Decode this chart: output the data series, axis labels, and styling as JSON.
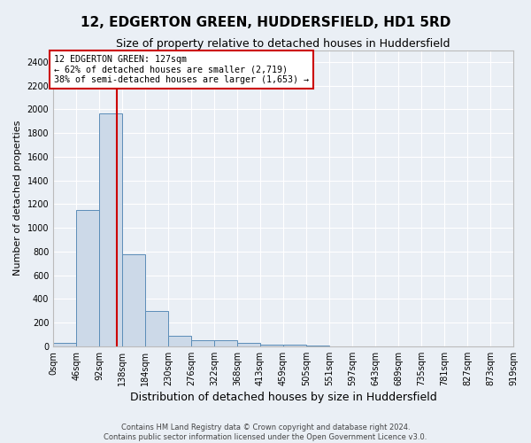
{
  "title": "12, EDGERTON GREEN, HUDDERSFIELD, HD1 5RD",
  "subtitle": "Size of property relative to detached houses in Huddersfield",
  "xlabel": "Distribution of detached houses by size in Huddersfield",
  "ylabel": "Number of detached properties",
  "footer_line1": "Contains HM Land Registry data © Crown copyright and database right 2024.",
  "footer_line2": "Contains public sector information licensed under the Open Government Licence v3.0.",
  "bin_edges": [
    0,
    46,
    92,
    138,
    184,
    230,
    276,
    322,
    368,
    413,
    459,
    505,
    551,
    597,
    643,
    689,
    735,
    781,
    827,
    873,
    919
  ],
  "bar_heights": [
    30,
    1150,
    1970,
    780,
    300,
    90,
    50,
    50,
    25,
    15,
    15,
    5,
    0,
    0,
    0,
    0,
    0,
    0,
    0,
    0
  ],
  "bar_color": "#ccd9e8",
  "bar_edge_color": "#5b8db8",
  "property_size": 127,
  "red_line_color": "#cc0000",
  "annotation_text_line1": "12 EDGERTON GREEN: 127sqm",
  "annotation_text_line2": "← 62% of detached houses are smaller (2,719)",
  "annotation_text_line3": "38% of semi-detached houses are larger (1,653) →",
  "annotation_box_color": "#cc0000",
  "ylim": [
    0,
    2500
  ],
  "yticks": [
    0,
    200,
    400,
    600,
    800,
    1000,
    1200,
    1400,
    1600,
    1800,
    2000,
    2200,
    2400
  ],
  "bg_color": "#eaeff5",
  "plot_bg_color": "#eaeff5",
  "grid_color": "#ffffff",
  "title_fontsize": 11,
  "subtitle_fontsize": 9,
  "xlabel_fontsize": 9,
  "ylabel_fontsize": 8,
  "tick_fontsize": 7
}
